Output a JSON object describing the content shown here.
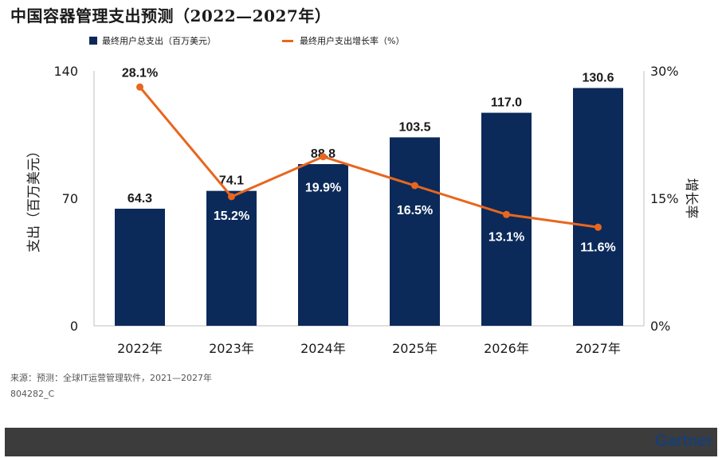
{
  "title": "中国容器管理支出预测（2022—2027年）",
  "legend": {
    "bar_label": "最终用户总支出（百万美元）",
    "line_label": "最终用户支出增长率（%）"
  },
  "footer": {
    "source": "来源：预测：全球IT运营管理软件，2021—2027年",
    "code": "804282_C"
  },
  "logo": "Gartner",
  "colors": {
    "bar": "#0b2a5a",
    "line": "#e8661e"
  },
  "chart_data": {
    "type": "bar",
    "categories": [
      "2022年",
      "2023年",
      "2024年",
      "2025年",
      "2026年",
      "2027年"
    ],
    "series": [
      {
        "name": "最终用户总支出（百万美元）",
        "type": "bar",
        "axis": "left",
        "values": [
          64.3,
          74.1,
          88.8,
          103.5,
          117.0,
          130.6
        ],
        "labels": [
          "64.3",
          "74.1",
          "88.8",
          "103.5",
          "117.0",
          "130.6"
        ]
      },
      {
        "name": "最终用户支出增长率（%）",
        "type": "line",
        "axis": "right",
        "values": [
          28.1,
          15.2,
          19.9,
          16.5,
          13.1,
          11.6
        ],
        "labels": [
          "28.1%",
          "15.2%",
          "19.9%",
          "16.5%",
          "13.1%",
          "11.6%"
        ]
      }
    ],
    "ylabel": "支出（百万美元）",
    "y2label": "增长率",
    "ylim": [
      0,
      140
    ],
    "yticks": [
      "0",
      "70",
      "140"
    ],
    "y2lim": [
      0,
      30
    ],
    "y2ticks": [
      "0%",
      "15%",
      "30%"
    ],
    "grid": false
  }
}
